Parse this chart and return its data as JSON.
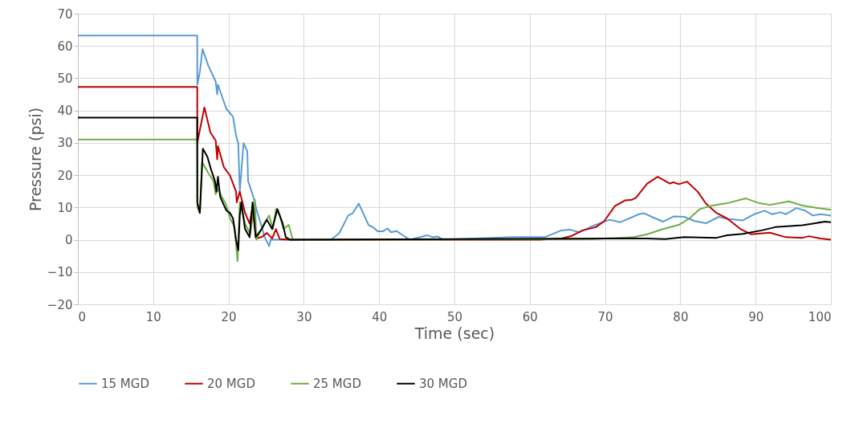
{
  "chart_data": {
    "type": "line",
    "xlabel": "Time (sec)",
    "ylabel": "Pressure (psi)",
    "xlim": [
      0,
      100
    ],
    "xticks": [
      0,
      10,
      20,
      30,
      40,
      50,
      60,
      70,
      80,
      90,
      100
    ],
    "ylim": [
      -20,
      70
    ],
    "yticks": [
      -20,
      -10,
      0,
      10,
      20,
      30,
      40,
      50,
      60,
      70
    ],
    "grid": true,
    "legend": "bottom",
    "marker": "none",
    "line_style": "solid",
    "series": [
      {
        "name": "15 MGD",
        "color": "#5b9bd5",
        "x": [
          0,
          15.85,
          15.86,
          16.2,
          16.56,
          17.3,
          18.3,
          18.5,
          18.6,
          19.7,
          20.6,
          21.0,
          21.3,
          21.5,
          22.0,
          22.5,
          22.6,
          23.3,
          23.85,
          24.4,
          24.8,
          25.4,
          25.6,
          33.6,
          34.7,
          35.9,
          36.5,
          37.3,
          38.6,
          39.3,
          39.8,
          40.5,
          41.1,
          41.6,
          42.3,
          43.4,
          44.1,
          46.4,
          47.1,
          47.8,
          48.5,
          57.8,
          62,
          64.2,
          65.4,
          66.6,
          68.4,
          70.6,
          72,
          74.5,
          75.2,
          76.2,
          77.7,
          79.1,
          80.5,
          81.9,
          83.4,
          85.1,
          86.2,
          88.3,
          89.8,
          91.2,
          92.2,
          93.3,
          94,
          95.4,
          96.5,
          97.6,
          98.6,
          100
        ],
        "values": [
          63.2,
          63.2,
          48,
          52,
          59,
          54,
          49,
          45,
          48,
          40.6,
          38.1,
          32.3,
          29.8,
          14.9,
          29.9,
          27.4,
          18.2,
          13.3,
          8.3,
          4.1,
          0.8,
          -2,
          0,
          0,
          2,
          7.5,
          8.2,
          11.2,
          4.6,
          3.7,
          2.6,
          2.6,
          3.5,
          2.3,
          2.7,
          1,
          0,
          1.4,
          0.8,
          1,
          0,
          0.8,
          0.8,
          2.9,
          3.1,
          2.3,
          4.3,
          6.2,
          5.4,
          7.9,
          8.2,
          7.1,
          5.6,
          7.2,
          7.1,
          5.8,
          5.1,
          7.1,
          6.5,
          6,
          7.9,
          9,
          7.9,
          8.5,
          7.9,
          9.8,
          9.1,
          7.5,
          7.9,
          7.5
        ]
      },
      {
        "name": "20 MGD",
        "color": "#c00000",
        "x": [
          0,
          15.85,
          15.86,
          16.2,
          16.8,
          17.6,
          18.3,
          18.5,
          18.6,
          19.4,
          20.2,
          20.6,
          21.0,
          21.1,
          21.5,
          22.2,
          22.8,
          23.2,
          23.7,
          24.4,
          25.1,
          25.8,
          26.3,
          26.8,
          28.2,
          61.3,
          64.2,
          65.6,
          67,
          68.8,
          69.9,
          71.3,
          72.7,
          73.6,
          74.1,
          75.6,
          77,
          78.6,
          79.1,
          79.8,
          80.9,
          82.3,
          83.4,
          84.8,
          86.2,
          88,
          89.4,
          91.9,
          94,
          96.2,
          97.1,
          98.6,
          100
        ],
        "values": [
          47.3,
          47.3,
          30,
          34,
          41,
          33.2,
          30.7,
          24.9,
          29,
          22.4,
          19.9,
          17.4,
          14.9,
          11.6,
          14.9,
          8.3,
          5,
          10,
          0.4,
          0.8,
          2.1,
          0.4,
          3.3,
          0.2,
          0,
          0,
          0.4,
          1.2,
          2.9,
          3.9,
          5.8,
          10.4,
          12.2,
          12.4,
          13,
          17.4,
          19.5,
          17.4,
          17.8,
          17.2,
          18,
          14.9,
          11.2,
          8.3,
          6.6,
          3.3,
          1.7,
          2.2,
          0.8,
          0.6,
          1.1,
          0.4,
          0
        ]
      },
      {
        "name": "25 MGD",
        "color": "#70ad47",
        "x": [
          0,
          15.85,
          15.86,
          16.2,
          16.5,
          17.3,
          18,
          18.3,
          18.6,
          19.7,
          20.2,
          20.8,
          21.2,
          21.5,
          22.2,
          22.9,
          23.5,
          23.7,
          24.7,
          25.4,
          25.9,
          26.3,
          26.8,
          27.3,
          28,
          28.5,
          28.7,
          68.4,
          73.8,
          75.6,
          77.7,
          79.8,
          81.2,
          82.6,
          84.1,
          86.2,
          88.7,
          90.5,
          91.9,
          94.4,
          96.2,
          98,
          100
        ],
        "values": [
          31,
          31,
          10,
          8.3,
          24.1,
          20.7,
          18.2,
          14.1,
          15.7,
          10.8,
          6.6,
          4.1,
          -6.6,
          11.6,
          5,
          1.7,
          12.4,
          0,
          5,
          7.5,
          3.3,
          9.5,
          7.5,
          3.3,
          4.6,
          0.4,
          0,
          0.2,
          0.8,
          1.7,
          3.3,
          4.6,
          6.6,
          9.5,
          10.5,
          11.3,
          12.8,
          11.3,
          10.8,
          11.9,
          10.6,
          9.9,
          9.3
        ]
      },
      {
        "name": "30 MGD",
        "color": "#000000",
        "x": [
          0,
          15.85,
          15.86,
          16.2,
          16.6,
          17.2,
          17.7,
          18.2,
          18.4,
          18.6,
          18.9,
          19.7,
          20.2,
          20.6,
          21.0,
          21.3,
          21.5,
          21.7,
          22.2,
          22.8,
          23.2,
          23.6,
          24.4,
          25.1,
          25.8,
          26.5,
          27.2,
          27.6,
          28.2,
          75.6,
          78,
          80.5,
          84.8,
          86.2,
          88.3,
          90.8,
          92.6,
          96.2,
          97.6,
          99.2,
          100
        ],
        "values": [
          37.8,
          37.8,
          11.6,
          8.3,
          28.2,
          25.7,
          21.6,
          18.2,
          14.9,
          19.5,
          13.3,
          9.1,
          8.3,
          6.6,
          0,
          -3.3,
          7.5,
          11.6,
          3.3,
          0.8,
          11.6,
          0.8,
          3.3,
          6.2,
          3.3,
          9.5,
          5,
          0.8,
          0,
          0.4,
          0.2,
          0.8,
          0.6,
          1.4,
          1.8,
          2.9,
          3.9,
          4.5,
          5,
          5.6,
          5.4
        ]
      }
    ]
  }
}
